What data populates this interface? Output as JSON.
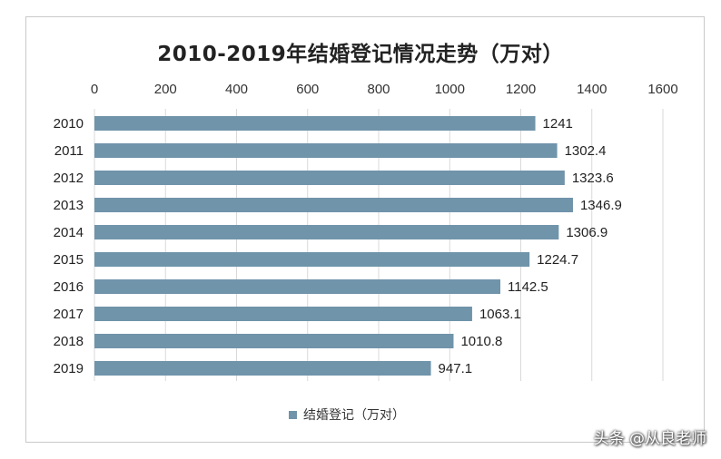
{
  "watermark": "头条 @从良老师",
  "chart_data": {
    "type": "bar",
    "orientation": "horizontal",
    "title": "2010-2019年结婚登记情况走势（万对）",
    "categories": [
      "2010",
      "2011",
      "2012",
      "2013",
      "2014",
      "2015",
      "2016",
      "2017",
      "2018",
      "2019"
    ],
    "series": [
      {
        "name": "结婚登记（万对）",
        "values": [
          1241,
          1302.4,
          1323.6,
          1346.9,
          1306.9,
          1224.7,
          1142.5,
          1063.1,
          1010.8,
          947.1
        ],
        "labels": [
          "1241",
          "1302.4",
          "1323.6",
          "1346.9",
          "1306.9",
          "1224.7",
          "1142.5",
          "1063.1",
          "1010.8",
          "947.1"
        ],
        "color": "#7094aa"
      }
    ],
    "xlim": [
      0,
      1600
    ],
    "xticks": [
      "0",
      "200",
      "400",
      "600",
      "800",
      "1000",
      "1200",
      "1400",
      "1600"
    ],
    "axis_position": "top",
    "grid": true,
    "legend_position": "bottom"
  }
}
